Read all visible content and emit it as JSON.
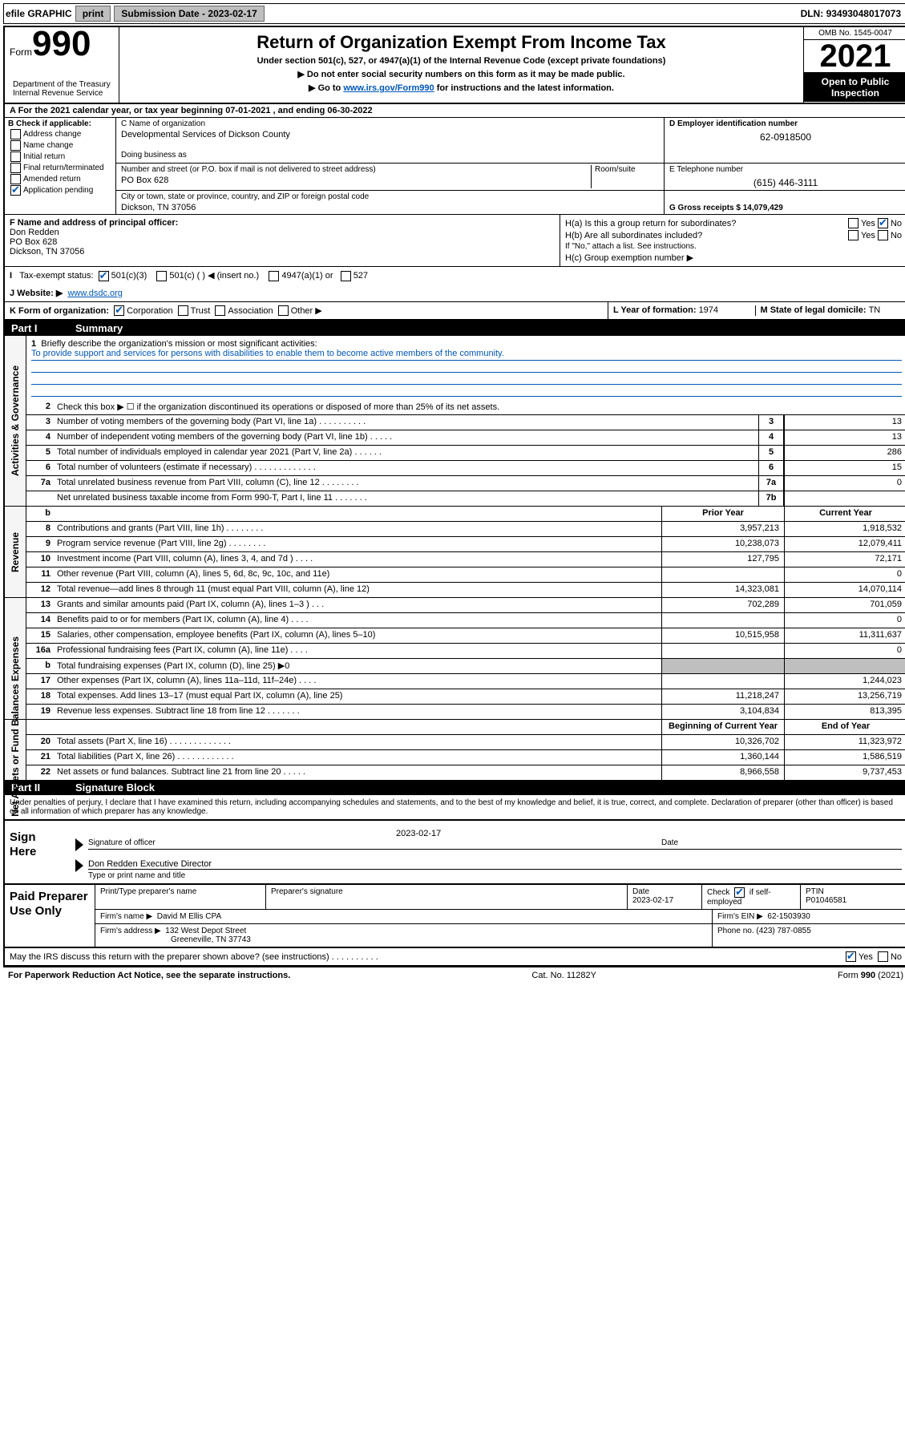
{
  "topbar": {
    "efile_label": "efile GRAPHIC",
    "print_btn": "print",
    "sub_date_label": "Submission Date - ",
    "sub_date": "2023-02-17",
    "dln_label": "DLN: ",
    "dln": "93493048017073"
  },
  "header": {
    "form_label": "Form",
    "form_num": "990",
    "dept": "Department of the Treasury\nInternal Revenue Service",
    "title": "Return of Organization Exempt From Income Tax",
    "sub1": "Under section 501(c), 527, or 4947(a)(1) of the Internal Revenue Code (except private foundations)",
    "sub2": "▶ Do not enter social security numbers on this form as it may be made public.",
    "sub3_prefix": "▶ Go to ",
    "sub3_link": "www.irs.gov/Form990",
    "sub3_suffix": " for instructions and the latest information.",
    "omb": "OMB No. 1545-0047",
    "year": "2021",
    "open_public": "Open to Public Inspection"
  },
  "section_a": {
    "text": "A For the 2021 calendar year, or tax year beginning 07-01-2021   , and ending 06-30-2022"
  },
  "section_b": {
    "header": "B Check if applicable:",
    "address_change": "Address change",
    "name_change": "Name change",
    "initial_return": "Initial return",
    "final_return": "Final return/terminated",
    "amended_return": "Amended return",
    "app_pending": "Application pending"
  },
  "section_c": {
    "c_label": "C Name of organization",
    "org_name": "Developmental Services of Dickson County",
    "dba_label": "Doing business as",
    "dba": "",
    "addr_label": "Number and street (or P.O. box if mail is not delivered to street address)",
    "room_label": "Room/suite",
    "addr": "PO Box 628",
    "city_label": "City or town, state or province, country, and ZIP or foreign postal code",
    "city": "Dickson, TN  37056"
  },
  "section_d": {
    "label": "D Employer identification number",
    "ein": "62-0918500"
  },
  "section_e": {
    "label": "E Telephone number",
    "phone": "(615) 446-3111"
  },
  "section_g": {
    "label": "G Gross receipts $ ",
    "amount": "14,079,429"
  },
  "section_f": {
    "label": "F Name and address of principal officer:",
    "name": "Don Redden",
    "addr1": "PO Box 628",
    "addr2": "Dickson, TN  37056"
  },
  "section_h": {
    "ha": "H(a)  Is this a group return for subordinates?",
    "hb": "H(b)  Are all subordinates included?",
    "hb_note": "If \"No,\" attach a list. See instructions.",
    "hc": "H(c)  Group exemption number ▶"
  },
  "section_i": {
    "label": "Tax-exempt status:",
    "opt1": "501(c)(3)",
    "opt2": "501(c) (  ) ◀ (insert no.)",
    "opt3": "4947(a)(1) or",
    "opt4": "527"
  },
  "section_j": {
    "label": "J   Website: ▶",
    "site": "www.dsdc.org"
  },
  "section_k": {
    "label": "K Form of organization:",
    "corp": "Corporation",
    "trust": "Trust",
    "assoc": "Association",
    "other": "Other ▶"
  },
  "section_l": {
    "label": "L Year of formation: ",
    "year": "1974"
  },
  "section_m": {
    "label": "M State of legal domicile: ",
    "state": "TN"
  },
  "part1_header": {
    "label": "Part I",
    "title": "Summary"
  },
  "briefly": {
    "num": "1",
    "prompt": "Briefly describe the organization's mission or most significant activities:",
    "mission": "To provide support and services for persons with disabilities to enable them to become active members of the community."
  },
  "line2": {
    "num": "2",
    "text": "Check this box ▶ ☐  if the organization discontinued its operations or disposed of more than 25% of its net assets."
  },
  "governance_rows": [
    {
      "num": "3",
      "text": "Number of voting members of the governing body (Part VI, line 1a)  .  .  .  .  .  .  .  .  .  .",
      "box": "3",
      "val": "13"
    },
    {
      "num": "4",
      "text": "Number of independent voting members of the governing body (Part VI, line 1b)    .  .  .  .  .",
      "box": "4",
      "val": "13"
    },
    {
      "num": "5",
      "text": "Total number of individuals employed in calendar year 2021 (Part V, line 2a)  .  .  .  .  .  .",
      "box": "5",
      "val": "286"
    },
    {
      "num": "6",
      "text": "Total number of volunteers (estimate if necessary)  .  .  .  .  .  .  .  .  .  .  .  .  .",
      "box": "6",
      "val": "15"
    },
    {
      "num": "7a",
      "text": "Total unrelated business revenue from Part VIII, column (C), line 12  .  .  .  .  .  .  .  .",
      "box": "7a",
      "val": "0"
    },
    {
      "num": "",
      "text": "Net unrelated business taxable income from Form 990-T, Part I, line 11  .  .  .  .  .  .  .",
      "box": "7b",
      "val": ""
    }
  ],
  "col_headers": {
    "prior": "Prior Year",
    "current": "Current Year"
  },
  "revenue_rows": [
    {
      "num": "8",
      "text": "Contributions and grants (Part VIII, line 1h)  .  .  .  .  .  .  .  .",
      "prior": "3,957,213",
      "current": "1,918,532"
    },
    {
      "num": "9",
      "text": "Program service revenue (Part VIII, line 2g)  .  .  .  .  .  .  .  .",
      "prior": "10,238,073",
      "current": "12,079,411"
    },
    {
      "num": "10",
      "text": "Investment income (Part VIII, column (A), lines 3, 4, and 7d )  .  .  .  .",
      "prior": "127,795",
      "current": "72,171"
    },
    {
      "num": "11",
      "text": "Other revenue (Part VIII, column (A), lines 5, 6d, 8c, 9c, 10c, and 11e)",
      "prior": "",
      "current": "0"
    },
    {
      "num": "12",
      "text": "Total revenue—add lines 8 through 11 (must equal Part VIII, column (A), line 12)",
      "prior": "14,323,081",
      "current": "14,070,114"
    }
  ],
  "expense_rows": [
    {
      "num": "13",
      "text": "Grants and similar amounts paid (Part IX, column (A), lines 1–3 )  .  .  .",
      "prior": "702,289",
      "current": "701,059"
    },
    {
      "num": "14",
      "text": "Benefits paid to or for members (Part IX, column (A), line 4)  .  .  .  .",
      "prior": "",
      "current": "0"
    },
    {
      "num": "15",
      "text": "Salaries, other compensation, employee benefits (Part IX, column (A), lines 5–10)",
      "prior": "10,515,958",
      "current": "11,311,637"
    },
    {
      "num": "16a",
      "text": "Professional fundraising fees (Part IX, column (A), line 11e)  .  .  .  .",
      "prior": "",
      "current": "0"
    },
    {
      "num": "b",
      "text": "Total fundraising expenses (Part IX, column (D), line 25) ▶0",
      "prior": "GRAY",
      "current": "GRAY"
    },
    {
      "num": "17",
      "text": "Other expenses (Part IX, column (A), lines 11a–11d, 11f–24e)  .  .  .  .",
      "prior": "",
      "current": "1,244,023"
    },
    {
      "num": "18",
      "text": "Total expenses. Add lines 13–17 (must equal Part IX, column (A), line 25)",
      "prior": "11,218,247",
      "current": "13,256,719"
    },
    {
      "num": "19",
      "text": "Revenue less expenses. Subtract line 18 from line 12  .  .  .  .  .  .  .",
      "prior": "3,104,834",
      "current": "813,395"
    }
  ],
  "na_headers": {
    "beg": "Beginning of Current Year",
    "end": "End of Year"
  },
  "netassets_rows": [
    {
      "num": "20",
      "text": "Total assets (Part X, line 16)  .  .  .  .  .  .  .  .  .  .  .  .  .",
      "prior": "10,326,702",
      "current": "11,323,972"
    },
    {
      "num": "21",
      "text": "Total liabilities (Part X, line 26)  .  .  .  .  .  .  .  .  .  .  .  .",
      "prior": "1,360,144",
      "current": "1,586,519"
    },
    {
      "num": "22",
      "text": "Net assets or fund balances. Subtract line 21 from line 20  .  .  .  .  .",
      "prior": "8,966,558",
      "current": "9,737,453"
    }
  ],
  "part2_header": {
    "label": "Part II",
    "title": "Signature Block"
  },
  "penalty_text": "Under penalties of perjury, I declare that I have examined this return, including accompanying schedules and statements, and to the best of my knowledge and belief, it is true, correct, and complete. Declaration of preparer (other than officer) is based on all information of which preparer has any knowledge.",
  "sign": {
    "left": "Sign Here",
    "sig_date": "2023-02-17",
    "sig_label": "Signature of officer",
    "date_label": "Date",
    "officer": "Don Redden  Executive Director",
    "type_label": "Type or print name and title"
  },
  "preparer": {
    "left": "Paid Preparer Use Only",
    "h1": "Print/Type preparer's name",
    "h2": "Preparer's signature",
    "h3_label": "Date",
    "h3": "2023-02-17",
    "h4_label": "Check",
    "h4_suffix": "if self-employed",
    "h5_label": "PTIN",
    "h5": "P01046581",
    "firm_name_label": "Firm's name    ▶",
    "firm_name": "David M Ellis CPA",
    "firm_ein_label": "Firm's EIN ▶",
    "firm_ein": "62-1503930",
    "firm_addr_label": "Firm's address ▶",
    "firm_addr1": "132 West Depot Street",
    "firm_addr2": "Greeneville, TN  37743",
    "phone_label": "Phone no. ",
    "phone": "(423) 787-0855"
  },
  "discuss": {
    "text": "May the IRS discuss this return with the preparer shown above? (see instructions)  .  .  .  .  .  .  .  .  .  .",
    "yes": "Yes",
    "no": "No"
  },
  "footer": {
    "left": "For Paperwork Reduction Act Notice, see the separate instructions.",
    "mid": "Cat. No. 11282Y",
    "right": "Form 990 (2021)"
  },
  "vtab_labels": {
    "gov": "Activities & Governance",
    "rev": "Revenue",
    "exp": "Expenses",
    "net": "Net Assets or Fund Balances"
  }
}
